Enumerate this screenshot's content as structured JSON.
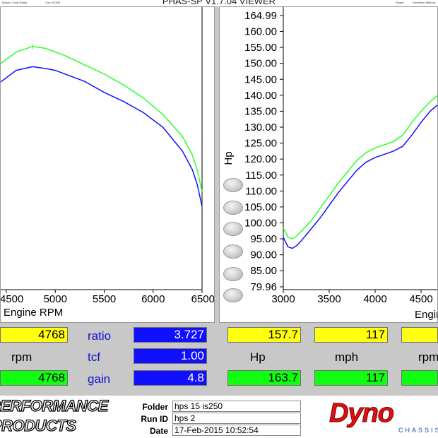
{
  "window": {
    "title": "PHAS-SP V1.7.04  VIEWER",
    "left_caption": "Torque | Gear Ratio)",
    "corr_caption": "Corr: NONE",
    "power_caption": "Power:",
    "corr_method_caption": "Correction Method:"
  },
  "left_chart": {
    "x_axis_label": "Engine RPM",
    "x_ticks": [
      "4500",
      "5000",
      "5500",
      "6000",
      "6500"
    ],
    "x_visible_start": "4500"
  },
  "right_chart": {
    "y_axis_label": "Hp",
    "x_axis_label": "Engine RPM",
    "y_ticks": [
      "164.99",
      "160.00",
      "155.00",
      "150.00",
      "145.00",
      "140.00",
      "135.00",
      "130.00",
      "125.00",
      "120.00",
      "115.00",
      "110.00",
      "105.00",
      "100.00",
      "95.00",
      "90.00",
      "85.00",
      "79.96"
    ],
    "x_ticks": [
      "3000",
      "3500",
      "4000",
      "4500"
    ]
  },
  "chart_data": [
    {
      "type": "line",
      "title": "",
      "xlabel": "Engine RPM",
      "ylabel": "",
      "xlim": [
        4080,
        6500
      ],
      "series": [
        {
          "color": "#2dff2d",
          "x": [
            4080,
            4200,
            4400,
            4600,
            4768,
            4900,
            5000,
            5100,
            5300,
            5500,
            5700,
            5900,
            6100,
            6300,
            6400,
            6450,
            6500
          ],
          "y": [
            18,
            22,
            28,
            32,
            33.5,
            33,
            32,
            31,
            28.5,
            26,
            23,
            19.5,
            15,
            9,
            4,
            0,
            -6
          ]
        },
        {
          "color": "#1010ff",
          "x": [
            4080,
            4200,
            4400,
            4600,
            4768,
            4900,
            5000,
            5100,
            5300,
            5500,
            5700,
            5900,
            6100,
            6300,
            6400,
            6450,
            6500
          ],
          "y": [
            15,
            18,
            23,
            27,
            28,
            27.5,
            27,
            26,
            24,
            21,
            18.5,
            15.5,
            11.5,
            5,
            0,
            -4,
            -10
          ]
        }
      ]
    },
    {
      "type": "line",
      "title": "",
      "xlabel": "Engine RPM",
      "ylabel": "Hp",
      "xlim": [
        3000,
        4700
      ],
      "ylim": [
        79.96,
        164.99
      ],
      "series": [
        {
          "color": "#2dff2d",
          "x": [
            3000,
            3050,
            3100,
            3150,
            3200,
            3300,
            3400,
            3500,
            3600,
            3700,
            3800,
            3900,
            4000,
            4100,
            4200,
            4300,
            4400,
            4500,
            4600,
            4700
          ],
          "y": [
            98.5,
            95.5,
            95.0,
            96.0,
            97.5,
            100.5,
            104.5,
            108.5,
            112.5,
            116.0,
            119.5,
            122.0,
            123.5,
            124.5,
            125.5,
            127.5,
            131.5,
            135.0,
            138.0,
            140.5
          ]
        },
        {
          "color": "#1010ff",
          "x": [
            3000,
            3050,
            3100,
            3150,
            3200,
            3300,
            3400,
            3500,
            3600,
            3700,
            3800,
            3900,
            4000,
            4100,
            4200,
            4300,
            4400,
            4500,
            4600,
            4700
          ],
          "y": [
            95.5,
            92.5,
            92.0,
            93.0,
            94.5,
            98.0,
            101.5,
            105.5,
            109.5,
            113.0,
            116.5,
            119.0,
            120.5,
            121.5,
            122.5,
            124.0,
            127.5,
            131.5,
            135.0,
            137.5
          ]
        }
      ]
    }
  ],
  "readouts": {
    "rpm_top": "4768",
    "rpm_label": "rpm",
    "rpm_bottom": "4768",
    "ratio_label": "ratio",
    "ratio_value": "3.727",
    "tcf_label": "tcf",
    "tcf_value": "1.00",
    "gain_label": "gain",
    "gain_value": "4.8",
    "hp_top": "157.7",
    "hp_label": "Hp",
    "hp_bottom": "163.7",
    "mph_top": "117",
    "mph_label": "mph",
    "mph_bottom": "117",
    "rpm2_label": "rpm"
  },
  "run_info": {
    "folder_label": "Folder",
    "folder_value": "hps 15 is250",
    "run_id_label": "Run ID",
    "run_id_value": "hps 2",
    "date_label": "Date",
    "date_value": "17-Feb-2015   10:52:54"
  },
  "branding": {
    "left_logo_line1": "PERFORMANCE",
    "left_logo_line2": "PRODUCTS",
    "right_logo": "Dyno",
    "right_logo_sub": "CHASSIS"
  },
  "colors": {
    "green_trace": "#2dff2d",
    "blue_trace": "#1010ff",
    "yellow_box": "#ffff10",
    "green_box": "#10ff10",
    "blue_box": "#1010ff"
  }
}
